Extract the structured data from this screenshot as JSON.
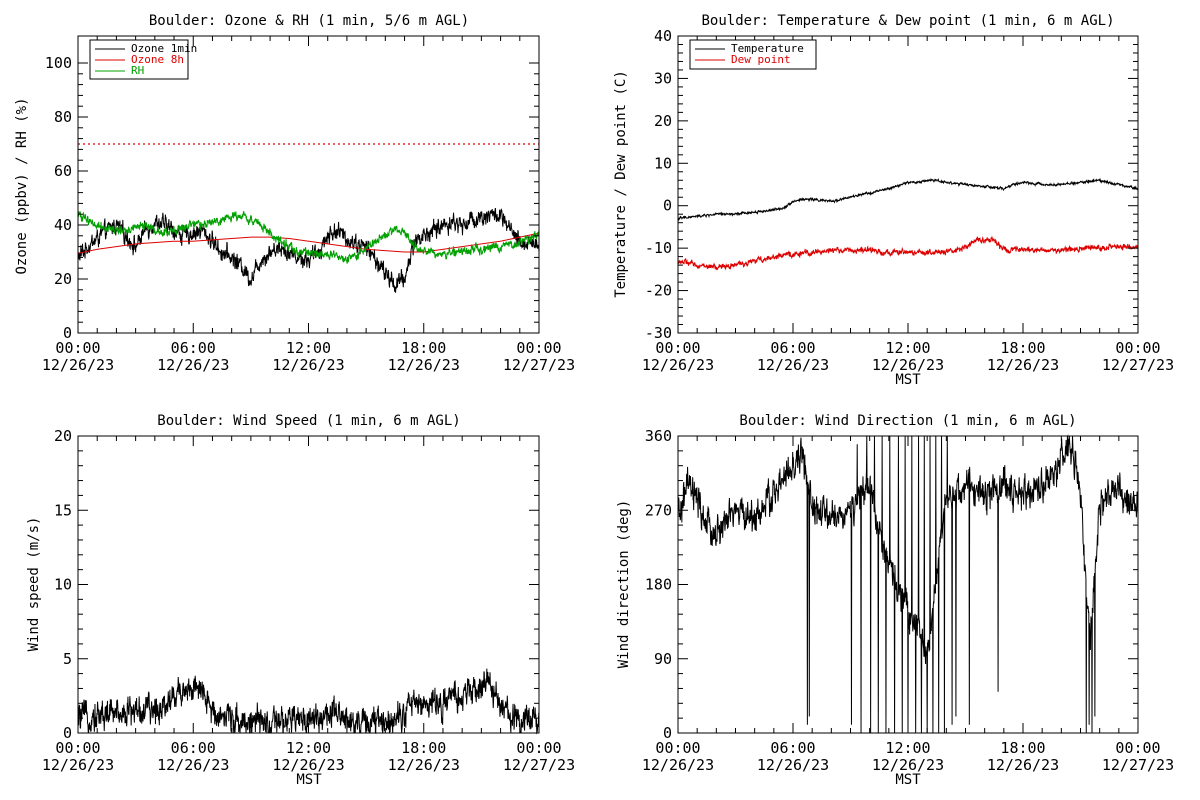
{
  "colors": {
    "black": "#000000",
    "red": "#dd0000",
    "green": "#00a000"
  },
  "chart_data": [
    {
      "id": "ozone",
      "type": "line",
      "title": "Boulder: Ozone & RH (1 min, 5/6 m AGL)",
      "xlabel": "",
      "ylabel": "Ozone (ppbv) / RH (%)",
      "xlim": [
        0,
        24
      ],
      "ylim": [
        0,
        110
      ],
      "yticks": [
        0,
        20,
        40,
        60,
        80,
        100
      ],
      "xticks": [
        {
          "t": 0,
          "time": "00:00",
          "date": "12/26/23"
        },
        {
          "t": 6,
          "time": "06:00",
          "date": "12/26/23"
        },
        {
          "t": 12,
          "time": "12:00",
          "date": "12/26/23"
        },
        {
          "t": 18,
          "time": "18:00",
          "date": "12/26/23"
        },
        {
          "t": 24,
          "time": "00:00",
          "date": "12/27/23"
        }
      ],
      "legend_position": "top-left",
      "reference_line": {
        "y": 70,
        "color": "#dd0000",
        "style": "dotted"
      },
      "series": [
        {
          "name": "Ozone 1min",
          "color": "#000000",
          "noise": 3,
          "x": [
            0,
            0.5,
            1,
            1.5,
            2,
            2.5,
            3,
            3.5,
            4,
            4.5,
            5,
            5.5,
            6,
            6.5,
            7,
            7.5,
            8,
            8.5,
            9,
            9.5,
            10,
            10.5,
            11,
            11.5,
            12,
            12.5,
            13,
            13.5,
            14,
            14.5,
            15,
            15.5,
            16,
            16.5,
            17,
            17.5,
            18,
            18.5,
            19,
            19.5,
            20,
            20.5,
            21,
            21.5,
            22,
            22.5,
            23,
            23.5,
            24
          ],
          "y": [
            28,
            32,
            35,
            38,
            40,
            36,
            32,
            38,
            41,
            40,
            38,
            36,
            37,
            38,
            34,
            30,
            28,
            25,
            20,
            27,
            30,
            32,
            30,
            28,
            27,
            30,
            36,
            38,
            35,
            33,
            32,
            27,
            22,
            18,
            20,
            34,
            36,
            38,
            40,
            41,
            40,
            42,
            43,
            44,
            43,
            38,
            33,
            34,
            33
          ]
        },
        {
          "name": "Ozone 8h",
          "color": "#dd0000",
          "noise": 0,
          "x": [
            0,
            1,
            2,
            3,
            4,
            5,
            6,
            7,
            8,
            9,
            10,
            11,
            12,
            13,
            14,
            15,
            16,
            17,
            18,
            19,
            20,
            21,
            22,
            23,
            24
          ],
          "y": [
            29.5,
            31,
            32,
            33,
            33.5,
            34,
            34,
            34.5,
            35,
            35.5,
            35.5,
            35,
            34,
            33,
            32,
            31,
            30.5,
            30,
            30,
            31,
            32,
            33,
            34,
            35.5,
            37
          ]
        },
        {
          "name": "RH",
          "color": "#00a000",
          "noise": 1.5,
          "x": [
            0,
            0.5,
            1,
            1.5,
            2,
            2.5,
            3,
            3.5,
            4,
            4.5,
            5,
            5.5,
            6,
            6.5,
            7,
            7.5,
            8,
            8.5,
            9,
            9.5,
            10,
            10.5,
            11,
            11.5,
            12,
            12.5,
            13,
            13.5,
            14,
            14.5,
            15,
            15.5,
            16,
            16.5,
            17,
            17.5,
            18,
            18.5,
            19,
            19.5,
            20,
            20.5,
            21,
            21.5,
            22,
            22.5,
            23,
            23.5,
            24
          ],
          "y": [
            44,
            42,
            40,
            39,
            38,
            38,
            39,
            40,
            38,
            37,
            38,
            39,
            40,
            40,
            41,
            42,
            43,
            44,
            42,
            40,
            37,
            34,
            32,
            30,
            30,
            29,
            29,
            28,
            27,
            28,
            32,
            34,
            36,
            38,
            38,
            32,
            30,
            30,
            29,
            30,
            30,
            31,
            31,
            32,
            32,
            33,
            33,
            35,
            37
          ]
        }
      ]
    },
    {
      "id": "temp",
      "type": "line",
      "title": "Boulder: Temperature & Dew point (1 min, 6 m AGL)",
      "xlabel": "MST",
      "ylabel": "Temperature / Dew point (C)",
      "xlim": [
        0,
        24
      ],
      "ylim": [
        -30,
        40
      ],
      "yticks": [
        -30,
        -20,
        -10,
        0,
        10,
        20,
        30,
        40
      ],
      "xticks": [
        {
          "t": 0,
          "time": "00:00",
          "date": "12/26/23"
        },
        {
          "t": 6,
          "time": "06:00",
          "date": "12/26/23"
        },
        {
          "t": 12,
          "time": "12:00",
          "date": "12/26/23"
        },
        {
          "t": 18,
          "time": "18:00",
          "date": "12/26/23"
        },
        {
          "t": 24,
          "time": "00:00",
          "date": "12/27/23"
        }
      ],
      "legend_position": "top-left",
      "series": [
        {
          "name": "Temperature",
          "color": "#000000",
          "noise": 0.25,
          "x": [
            0,
            1,
            2,
            3,
            4,
            5,
            5.5,
            6,
            6.5,
            7,
            8,
            9,
            10,
            11,
            12,
            12.5,
            13,
            13.5,
            14,
            15,
            16,
            17,
            17.5,
            18,
            19,
            20,
            21,
            22,
            23,
            24
          ],
          "y": [
            -3,
            -2.5,
            -2,
            -2,
            -1.5,
            -1,
            -0.5,
            1,
            1.5,
            1.5,
            1,
            2,
            3,
            4,
            5.5,
            5.5,
            6,
            6,
            5.5,
            5,
            4.5,
            4,
            5,
            5.5,
            5,
            5,
            5.5,
            6,
            5,
            4
          ]
        },
        {
          "name": "Dew point",
          "color": "#dd0000",
          "noise": 0.6,
          "x": [
            0,
            1,
            2,
            3,
            4,
            5,
            6,
            7,
            8,
            9,
            10,
            11,
            12,
            13,
            14,
            15,
            15.5,
            16,
            16.5,
            17,
            18,
            19,
            20,
            21,
            22,
            23,
            24
          ],
          "y": [
            -13,
            -14,
            -14.5,
            -14,
            -13,
            -12,
            -11.5,
            -11,
            -10.5,
            -10.5,
            -10.5,
            -11,
            -11,
            -11,
            -11,
            -10,
            -8,
            -8,
            -8,
            -10.5,
            -10.5,
            -10.5,
            -10.5,
            -10,
            -10,
            -9.5,
            -10
          ]
        }
      ]
    },
    {
      "id": "wspd",
      "type": "line",
      "title": "Boulder: Wind Speed (1 min, 6 m AGL)",
      "xlabel": "MST",
      "ylabel": "Wind speed (m/s)",
      "xlim": [
        0,
        24
      ],
      "ylim": [
        0,
        20
      ],
      "yticks": [
        0,
        5,
        10,
        15,
        20
      ],
      "xticks": [
        {
          "t": 0,
          "time": "00:00",
          "date": "12/26/23"
        },
        {
          "t": 6,
          "time": "06:00",
          "date": "12/26/23"
        },
        {
          "t": 12,
          "time": "12:00",
          "date": "12/26/23"
        },
        {
          "t": 18,
          "time": "18:00",
          "date": "12/26/23"
        },
        {
          "t": 24,
          "time": "00:00",
          "date": "12/27/23"
        }
      ],
      "series": [
        {
          "name": "",
          "color": "#000000",
          "noise": 0.9,
          "floor": 0,
          "x": [
            0,
            1,
            2,
            3,
            4,
            5,
            5.5,
            6,
            6.5,
            7,
            8,
            9,
            10,
            11,
            12,
            13,
            14,
            15,
            16,
            17,
            17.5,
            18,
            19,
            20,
            21,
            21.5,
            22,
            23,
            24
          ],
          "y": [
            1,
            1.2,
            1.4,
            1.5,
            1.5,
            2.5,
            3,
            3,
            2.5,
            1.5,
            1,
            0.8,
            0.5,
            0.8,
            1,
            1.2,
            1,
            0.6,
            0.8,
            1.5,
            2,
            2,
            2,
            2.5,
            3,
            3.5,
            1.5,
            1,
            1
          ]
        }
      ]
    },
    {
      "id": "wdir",
      "type": "line",
      "title": "Boulder: Wind Direction (1 min, 6 m AGL)",
      "xlabel": "MST",
      "ylabel": "Wind direction (deg)",
      "xlim": [
        0,
        24
      ],
      "ylim": [
        0,
        360
      ],
      "yticks": [
        0,
        90,
        180,
        270,
        360
      ],
      "xticks": [
        {
          "t": 0,
          "time": "00:00",
          "date": "12/26/23"
        },
        {
          "t": 6,
          "time": "06:00",
          "date": "12/26/23"
        },
        {
          "t": 12,
          "time": "12:00",
          "date": "12/26/23"
        },
        {
          "t": 18,
          "time": "18:00",
          "date": "12/26/23"
        },
        {
          "t": 24,
          "time": "00:00",
          "date": "12/27/23"
        }
      ],
      "series": [
        {
          "name": "",
          "color": "#000000",
          "noise": 18,
          "floor": 0,
          "ceil": 360,
          "x": [
            0,
            0.5,
            1,
            1.5,
            2,
            3,
            4,
            5,
            6,
            6.5,
            7,
            8,
            9,
            10,
            11,
            12,
            13,
            14,
            15,
            16,
            17,
            18,
            19,
            20,
            20.5,
            21,
            21.5,
            22,
            22.5,
            23,
            24
          ],
          "y": [
            260,
            300,
            280,
            250,
            240,
            270,
            260,
            290,
            320,
            340,
            270,
            260,
            270,
            300,
            200,
            150,
            100,
            280,
            300,
            290,
            300,
            290,
            300,
            330,
            350,
            290,
            100,
            280,
            290,
            290,
            270
          ],
          "spikes": [
            {
              "t": 6.75,
              "to": 10
            },
            {
              "t": 6.85,
              "to": 20
            },
            {
              "t": 9.05,
              "to": 10
            },
            {
              "t": 9.35,
              "to": 350
            },
            {
              "t": 9.55,
              "to": 0
            },
            {
              "t": 9.85,
              "to": 360
            },
            {
              "t": 10.05,
              "to": 0
            },
            {
              "t": 10.25,
              "to": 360
            },
            {
              "t": 10.45,
              "to": 0
            },
            {
              "t": 10.65,
              "to": 360
            },
            {
              "t": 10.85,
              "to": 0
            },
            {
              "t": 11.05,
              "to": 360
            },
            {
              "t": 11.3,
              "to": 0
            },
            {
              "t": 11.5,
              "to": 360
            },
            {
              "t": 11.7,
              "to": 0
            },
            {
              "t": 11.85,
              "to": 360
            },
            {
              "t": 12.0,
              "to": 0
            },
            {
              "t": 12.2,
              "to": 360
            },
            {
              "t": 12.4,
              "to": 0
            },
            {
              "t": 12.55,
              "to": 360
            },
            {
              "t": 12.7,
              "to": 0
            },
            {
              "t": 12.85,
              "to": 360
            },
            {
              "t": 13.0,
              "to": 0
            },
            {
              "t": 13.15,
              "to": 360
            },
            {
              "t": 13.3,
              "to": 0
            },
            {
              "t": 13.45,
              "to": 360
            },
            {
              "t": 13.6,
              "to": 0
            },
            {
              "t": 13.75,
              "to": 360
            },
            {
              "t": 13.9,
              "to": 0
            },
            {
              "t": 14.05,
              "to": 360
            },
            {
              "t": 14.3,
              "to": 10
            },
            {
              "t": 14.5,
              "to": 20
            },
            {
              "t": 15.2,
              "to": 10
            },
            {
              "t": 16.7,
              "to": 50
            },
            {
              "t": 21.3,
              "to": 0
            },
            {
              "t": 21.45,
              "to": 10
            },
            {
              "t": 21.6,
              "to": 0
            },
            {
              "t": 21.75,
              "to": 20
            }
          ]
        }
      ]
    }
  ]
}
